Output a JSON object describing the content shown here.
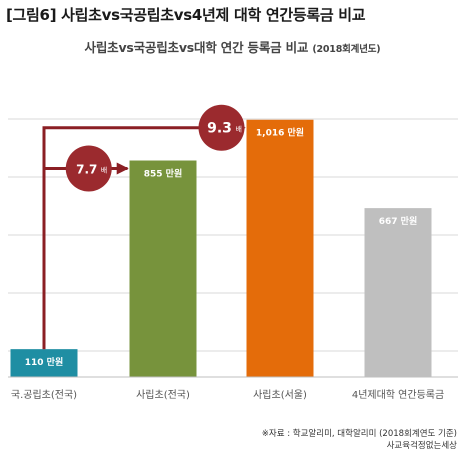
{
  "figure_title": "[그림6] 사립초vs국공립초vs4년제 대학 연간등록금 비교",
  "chart_title": "사립초vs국공립초vs대학 연간 등록금 비교",
  "chart_subtitle": "(2018회계년도)",
  "source_line1": "※자료 : 학교알리미, 대학알리미 (2018회계연도 기준)",
  "source_line2": "사교육걱정없는세상",
  "colors": {
    "grid": "#d9d9d9",
    "arrow": "#8b1f24",
    "circle": "#9b2a2e",
    "axis_text": "#555555"
  },
  "chart_data": {
    "type": "bar",
    "categories": [
      "국.공립초(전국)",
      "사립초(전국)",
      "사립초(서울)",
      "4년제대학 연간등록금"
    ],
    "values": [
      110,
      855,
      1016,
      667
    ],
    "value_labels": [
      "110 만원",
      "855 만원",
      "1,016 만원",
      "667 만원"
    ],
    "bar_colors": [
      "#1f8ea3",
      "#77933c",
      "#e46c0a",
      "#bfbfbf"
    ],
    "unit": "만원",
    "ylim": [
      0,
      1200
    ],
    "grid": true,
    "annotations": [
      {
        "label": "7.7",
        "suffix": "배",
        "from": "국.공립초(전국)",
        "to": "사립초(전국)"
      },
      {
        "label": "9.3",
        "suffix": "배",
        "from": "국.공립초(전국)",
        "to": "사립초(서울)"
      }
    ]
  }
}
